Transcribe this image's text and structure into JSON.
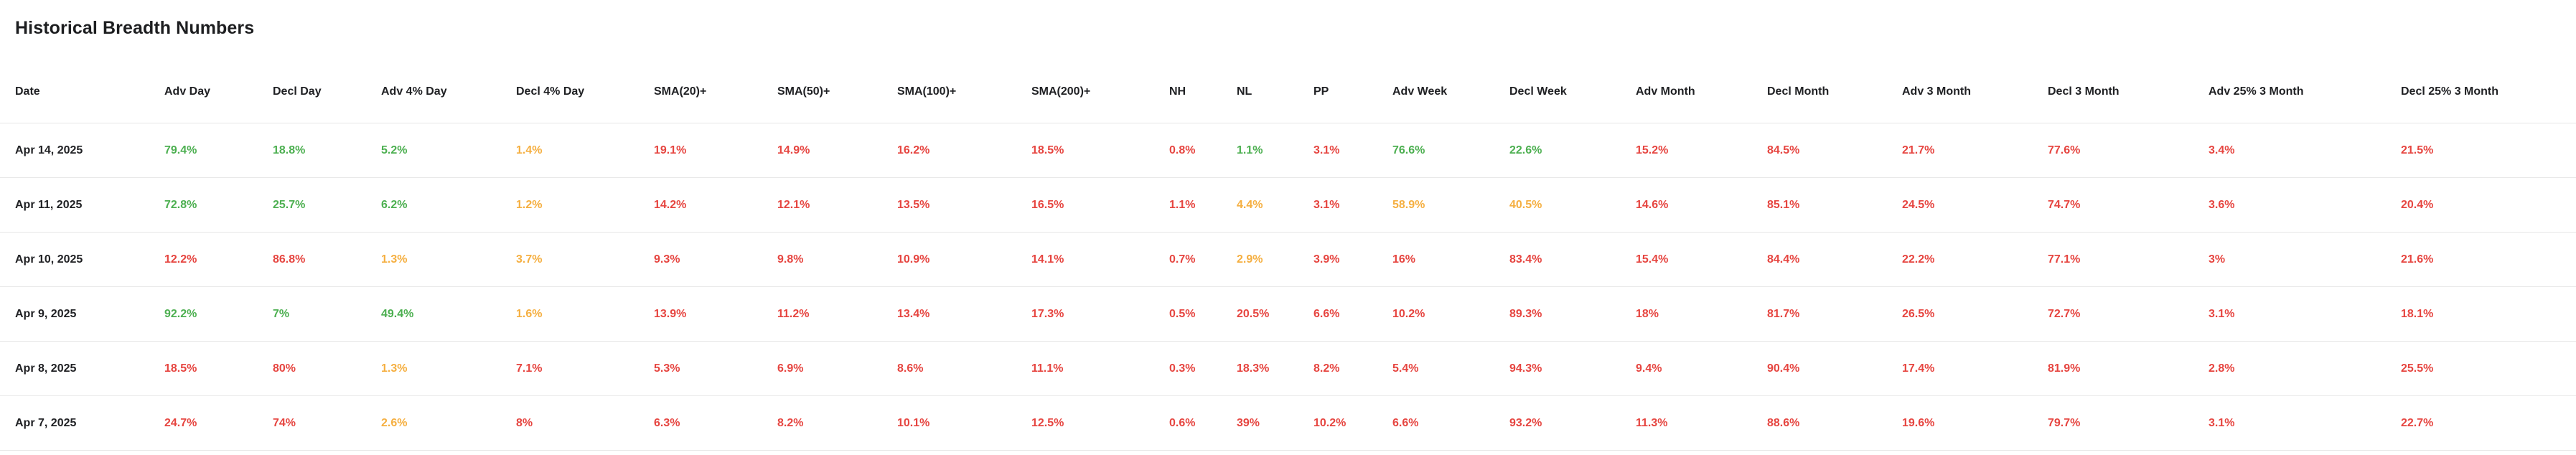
{
  "page_title": "Historical Breadth Numbers",
  "colors": {
    "positive_green": "#4caf50",
    "negative_red": "#e64540",
    "caution_orange": "#f5af41",
    "text_dark": "#202124",
    "divider": "#e7e7e7",
    "background": "#ffffff"
  },
  "table": {
    "columns": [
      "Date",
      "Adv Day",
      "Decl Day",
      "Adv 4% Day",
      "Decl 4% Day",
      "SMA(20)+",
      "SMA(50)+",
      "SMA(100)+",
      "SMA(200)+",
      "NH",
      "NL",
      "PP",
      "Adv Week",
      "Decl Week",
      "Adv Month",
      "Decl Month",
      "Adv 3 Month",
      "Decl 3 Month",
      "Adv 25% 3 Month",
      "Decl 25% 3 Month"
    ],
    "rows": [
      {
        "date": "Apr 14, 2025",
        "cells": [
          {
            "v": "79.4%",
            "c": "green"
          },
          {
            "v": "18.8%",
            "c": "green"
          },
          {
            "v": "5.2%",
            "c": "green"
          },
          {
            "v": "1.4%",
            "c": "orange"
          },
          {
            "v": "19.1%",
            "c": "red"
          },
          {
            "v": "14.9%",
            "c": "red"
          },
          {
            "v": "16.2%",
            "c": "red"
          },
          {
            "v": "18.5%",
            "c": "red"
          },
          {
            "v": "0.8%",
            "c": "red"
          },
          {
            "v": "1.1%",
            "c": "green"
          },
          {
            "v": "3.1%",
            "c": "red"
          },
          {
            "v": "76.6%",
            "c": "green"
          },
          {
            "v": "22.6%",
            "c": "green"
          },
          {
            "v": "15.2%",
            "c": "red"
          },
          {
            "v": "84.5%",
            "c": "red"
          },
          {
            "v": "21.7%",
            "c": "red"
          },
          {
            "v": "77.6%",
            "c": "red"
          },
          {
            "v": "3.4%",
            "c": "red"
          },
          {
            "v": "21.5%",
            "c": "red"
          }
        ]
      },
      {
        "date": "Apr 11, 2025",
        "cells": [
          {
            "v": "72.8%",
            "c": "green"
          },
          {
            "v": "25.7%",
            "c": "green"
          },
          {
            "v": "6.2%",
            "c": "green"
          },
          {
            "v": "1.2%",
            "c": "orange"
          },
          {
            "v": "14.2%",
            "c": "red"
          },
          {
            "v": "12.1%",
            "c": "red"
          },
          {
            "v": "13.5%",
            "c": "red"
          },
          {
            "v": "16.5%",
            "c": "red"
          },
          {
            "v": "1.1%",
            "c": "red"
          },
          {
            "v": "4.4%",
            "c": "orange"
          },
          {
            "v": "3.1%",
            "c": "red"
          },
          {
            "v": "58.9%",
            "c": "orange"
          },
          {
            "v": "40.5%",
            "c": "orange"
          },
          {
            "v": "14.6%",
            "c": "red"
          },
          {
            "v": "85.1%",
            "c": "red"
          },
          {
            "v": "24.5%",
            "c": "red"
          },
          {
            "v": "74.7%",
            "c": "red"
          },
          {
            "v": "3.6%",
            "c": "red"
          },
          {
            "v": "20.4%",
            "c": "red"
          }
        ]
      },
      {
        "date": "Apr 10, 2025",
        "cells": [
          {
            "v": "12.2%",
            "c": "red"
          },
          {
            "v": "86.8%",
            "c": "red"
          },
          {
            "v": "1.3%",
            "c": "orange"
          },
          {
            "v": "3.7%",
            "c": "orange"
          },
          {
            "v": "9.3%",
            "c": "red"
          },
          {
            "v": "9.8%",
            "c": "red"
          },
          {
            "v": "10.9%",
            "c": "red"
          },
          {
            "v": "14.1%",
            "c": "red"
          },
          {
            "v": "0.7%",
            "c": "red"
          },
          {
            "v": "2.9%",
            "c": "orange"
          },
          {
            "v": "3.9%",
            "c": "red"
          },
          {
            "v": "16%",
            "c": "red"
          },
          {
            "v": "83.4%",
            "c": "red"
          },
          {
            "v": "15.4%",
            "c": "red"
          },
          {
            "v": "84.4%",
            "c": "red"
          },
          {
            "v": "22.2%",
            "c": "red"
          },
          {
            "v": "77.1%",
            "c": "red"
          },
          {
            "v": "3%",
            "c": "red"
          },
          {
            "v": "21.6%",
            "c": "red"
          }
        ]
      },
      {
        "date": "Apr 9, 2025",
        "cells": [
          {
            "v": "92.2%",
            "c": "green"
          },
          {
            "v": "7%",
            "c": "green"
          },
          {
            "v": "49.4%",
            "c": "green"
          },
          {
            "v": "1.6%",
            "c": "orange"
          },
          {
            "v": "13.9%",
            "c": "red"
          },
          {
            "v": "11.2%",
            "c": "red"
          },
          {
            "v": "13.4%",
            "c": "red"
          },
          {
            "v": "17.3%",
            "c": "red"
          },
          {
            "v": "0.5%",
            "c": "red"
          },
          {
            "v": "20.5%",
            "c": "red"
          },
          {
            "v": "6.6%",
            "c": "red"
          },
          {
            "v": "10.2%",
            "c": "red"
          },
          {
            "v": "89.3%",
            "c": "red"
          },
          {
            "v": "18%",
            "c": "red"
          },
          {
            "v": "81.7%",
            "c": "red"
          },
          {
            "v": "26.5%",
            "c": "red"
          },
          {
            "v": "72.7%",
            "c": "red"
          },
          {
            "v": "3.1%",
            "c": "red"
          },
          {
            "v": "18.1%",
            "c": "red"
          }
        ]
      },
      {
        "date": "Apr 8, 2025",
        "cells": [
          {
            "v": "18.5%",
            "c": "red"
          },
          {
            "v": "80%",
            "c": "red"
          },
          {
            "v": "1.3%",
            "c": "orange"
          },
          {
            "v": "7.1%",
            "c": "red"
          },
          {
            "v": "5.3%",
            "c": "red"
          },
          {
            "v": "6.9%",
            "c": "red"
          },
          {
            "v": "8.6%",
            "c": "red"
          },
          {
            "v": "11.1%",
            "c": "red"
          },
          {
            "v": "0.3%",
            "c": "red"
          },
          {
            "v": "18.3%",
            "c": "red"
          },
          {
            "v": "8.2%",
            "c": "red"
          },
          {
            "v": "5.4%",
            "c": "red"
          },
          {
            "v": "94.3%",
            "c": "red"
          },
          {
            "v": "9.4%",
            "c": "red"
          },
          {
            "v": "90.4%",
            "c": "red"
          },
          {
            "v": "17.4%",
            "c": "red"
          },
          {
            "v": "81.9%",
            "c": "red"
          },
          {
            "v": "2.8%",
            "c": "red"
          },
          {
            "v": "25.5%",
            "c": "red"
          }
        ]
      },
      {
        "date": "Apr 7, 2025",
        "cells": [
          {
            "v": "24.7%",
            "c": "red"
          },
          {
            "v": "74%",
            "c": "red"
          },
          {
            "v": "2.6%",
            "c": "orange"
          },
          {
            "v": "8%",
            "c": "red"
          },
          {
            "v": "6.3%",
            "c": "red"
          },
          {
            "v": "8.2%",
            "c": "red"
          },
          {
            "v": "10.1%",
            "c": "red"
          },
          {
            "v": "12.5%",
            "c": "red"
          },
          {
            "v": "0.6%",
            "c": "red"
          },
          {
            "v": "39%",
            "c": "red"
          },
          {
            "v": "10.2%",
            "c": "red"
          },
          {
            "v": "6.6%",
            "c": "red"
          },
          {
            "v": "93.2%",
            "c": "red"
          },
          {
            "v": "11.3%",
            "c": "red"
          },
          {
            "v": "88.6%",
            "c": "red"
          },
          {
            "v": "19.6%",
            "c": "red"
          },
          {
            "v": "79.7%",
            "c": "red"
          },
          {
            "v": "3.1%",
            "c": "red"
          },
          {
            "v": "22.7%",
            "c": "red"
          }
        ]
      }
    ]
  }
}
